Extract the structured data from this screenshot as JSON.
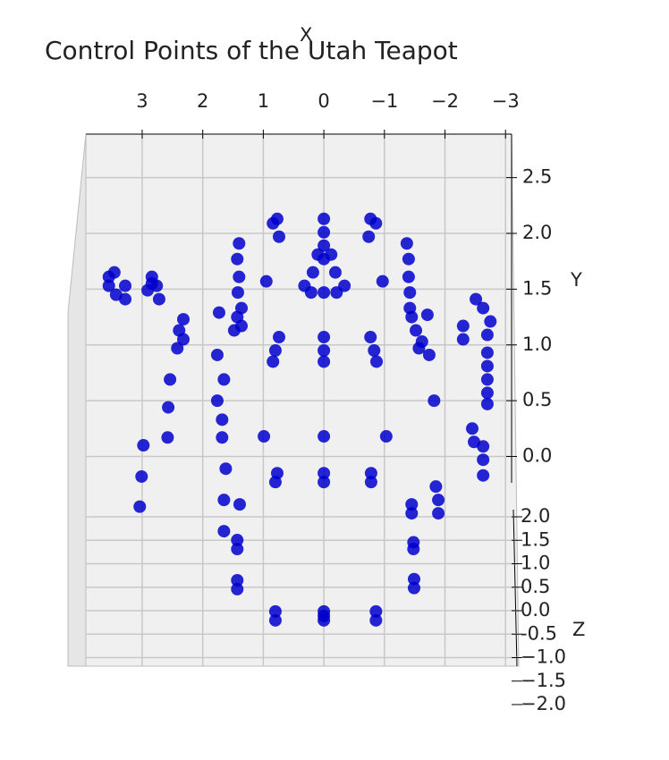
{
  "chart_data": {
    "type": "scatter3d",
    "title": "Control Points of the Utah Teapot",
    "xlabel": "X",
    "ylabel": "Y",
    "zlabel": "Z",
    "color": "#0000cc",
    "grid": true,
    "xlim": [
      3.93,
      -3.1
    ],
    "ylim": [
      -1.88,
      2.89
    ],
    "zlim": [
      -2.0,
      2.0
    ],
    "xticks": [
      3,
      2,
      1,
      0,
      {
        "value": -1,
        "label": "−1"
      },
      {
        "value": -2,
        "label": "−2"
      },
      {
        "value": -3,
        "label": "−3"
      }
    ],
    "yticks": [
      {
        "value": 0,
        "label": "0.0"
      },
      0.5,
      {
        "value": 1,
        "label": "1.0"
      },
      1.5,
      {
        "value": 2,
        "label": "2.0"
      },
      2.5
    ],
    "zticks": [
      {
        "value": 2,
        "label": "2.0"
      },
      1.5,
      {
        "value": 1,
        "label": "1.0"
      },
      0.5,
      {
        "value": 0,
        "label": "0.0"
      },
      -0.5,
      {
        "value": -1,
        "label": "−1.0"
      },
      {
        "value": -1.5,
        "label": "−1.5"
      },
      {
        "value": -2,
        "label": "−2.0"
      }
    ],
    "x": [
      3.55,
      3.55,
      3.43,
      3.28,
      3.28,
      3.46,
      2.84,
      2.76,
      2.91,
      2.72,
      2.84,
      2.32,
      2.39,
      2.32,
      2.42,
      1.73,
      1.76,
      1.65,
      1.76,
      1.68,
      1.68,
      1.62,
      1.65,
      1.65,
      1.39,
      1.43,
      1.43,
      1.43,
      1.43,
      2.54,
      2.57,
      2.58,
      2.98,
      3.01,
      3.04,
      1.4,
      1.43,
      1.4,
      1.42,
      1.36,
      1.43,
      1.48,
      1.36,
      0.77,
      0.74,
      0.84,
      0.95,
      0.74,
      0.8,
      0.84,
      0,
      0,
      0,
      0,
      0.1,
      -0.12,
      0.18,
      -0.19,
      0.32,
      -0.34,
      0.21,
      -0.21,
      0,
      0,
      0,
      0,
      -0.77,
      -0.74,
      -0.86,
      -0.97,
      -0.77,
      -0.83,
      -0.87,
      -1.37,
      -1.4,
      -1.4,
      -1.42,
      -1.42,
      -1.45,
      -1.52,
      -1.62,
      -1.71,
      -1.74,
      -1.82,
      -1.57,
      0.99,
      0,
      -1.03,
      0.77,
      0.8,
      0,
      0,
      -0.78,
      -0.78,
      -1.45,
      -1.45,
      -1.48,
      -1.48,
      -1.49,
      -1.49,
      0.8,
      0.8,
      0,
      0,
      0,
      -0.86,
      -0.86,
      -1.85,
      -1.89,
      -1.89,
      -2.51,
      -2.63,
      -2.3,
      -2.3,
      -2.75,
      -2.7,
      -2.7,
      -2.7,
      -2.7,
      -2.7,
      -2.7,
      -2.45,
      -2.48,
      -2.63,
      -2.63,
      -2.63
    ],
    "values": [
      1.61,
      1.53,
      1.45,
      1.53,
      1.41,
      1.65,
      1.61,
      1.53,
      1.49,
      1.41,
      1.55,
      1.23,
      1.13,
      1.05,
      0.97,
      1.29,
      0.91,
      0.69,
      0.5,
      0.33,
      0.17,
      -0.11,
      -0.39,
      -0.67,
      -0.43,
      -0.75,
      -0.83,
      -1.11,
      -1.19,
      0.69,
      0.44,
      0.17,
      0.1,
      -0.18,
      -0.45,
      1.91,
      1.77,
      1.61,
      1.47,
      1.33,
      1.25,
      1.13,
      1.17,
      2.13,
      1.97,
      2.09,
      1.57,
      1.07,
      0.95,
      0.85,
      2.13,
      2.01,
      1.89,
      1.77,
      1.81,
      1.81,
      1.65,
      1.65,
      1.53,
      1.53,
      1.47,
      1.47,
      1.47,
      1.07,
      0.95,
      0.85,
      2.13,
      1.97,
      2.09,
      1.57,
      1.07,
      0.95,
      0.85,
      1.91,
      1.77,
      1.61,
      1.47,
      1.33,
      1.25,
      1.13,
      1.03,
      1.27,
      0.91,
      0.5,
      0.97,
      0.18,
      0.18,
      0.18,
      -0.15,
      -0.23,
      -0.15,
      -0.23,
      -0.15,
      -0.23,
      -0.43,
      -0.51,
      -0.77,
      -0.83,
      -1.1,
      -1.18,
      -1.39,
      -1.47,
      -1.39,
      -1.43,
      -1.47,
      -1.39,
      -1.47,
      -0.27,
      -0.39,
      -0.51,
      1.41,
      1.33,
      1.17,
      1.05,
      1.21,
      1.09,
      0.93,
      0.81,
      0.69,
      0.57,
      0.47,
      0.25,
      0.13,
      0.09,
      -0.03,
      -0.17
    ]
  }
}
